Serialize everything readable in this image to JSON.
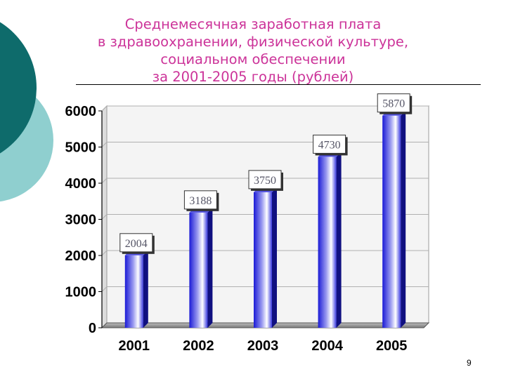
{
  "slide": {
    "title_lines": [
      "Среднемесячная заработная плата",
      "в здравоохранении, физической культуре,",
      "социальном обеспечении",
      "за 2001-2005 годы (рублей)"
    ],
    "page_number": "9",
    "colors": {
      "title": "#cc3399",
      "decor_dark": "#0e6b6b",
      "decor_light": "#8fcfcf",
      "bar_dark": "#1a1ad6",
      "bar_light": "#ffffff"
    }
  },
  "chart_data": {
    "type": "bar",
    "categories": [
      "2001",
      "2002",
      "2003",
      "2004",
      "2005"
    ],
    "values": [
      2004,
      3188,
      3750,
      4730,
      5870
    ],
    "data_labels": [
      "2004",
      "3188",
      "3750",
      "4730",
      "5870"
    ],
    "ylim": [
      0,
      6000
    ],
    "yticks": [
      0,
      1000,
      2000,
      3000,
      4000,
      5000,
      6000
    ],
    "ytick_labels": [
      "0",
      "1000",
      "2000",
      "3000",
      "4000",
      "5000",
      "6000"
    ],
    "grid": true,
    "legend": "none"
  }
}
